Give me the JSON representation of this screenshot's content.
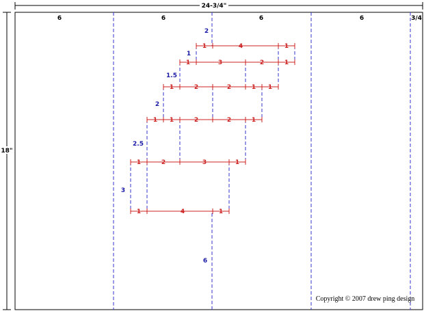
{
  "colors": {
    "red": "#cc2222",
    "blue": "#3333cc",
    "label_blue": "#1a1aa6",
    "black": "#000000"
  },
  "dimensions": {
    "overall_width": "24-3/4\"",
    "overall_height": "18\""
  },
  "columns": [
    "6",
    "6",
    "6",
    "6",
    "3/4"
  ],
  "rise_labels": [
    "2",
    "1",
    "1.5",
    "2",
    "2.5",
    "3",
    "6"
  ],
  "rows": [
    {
      "segments": [
        "1",
        "4",
        "1"
      ]
    },
    {
      "segments": [
        "1",
        "3",
        "2",
        "1"
      ]
    },
    {
      "segments": [
        "1",
        "2",
        "2",
        "1",
        "1"
      ]
    },
    {
      "segments": [
        "1",
        "1",
        "2",
        "2",
        "1"
      ]
    },
    {
      "segments": [
        "1",
        "2",
        "3",
        "1"
      ]
    },
    {
      "segments": [
        "1",
        "4",
        "1"
      ]
    }
  ],
  "copyright": "Copyright © 2007 drew ping design"
}
